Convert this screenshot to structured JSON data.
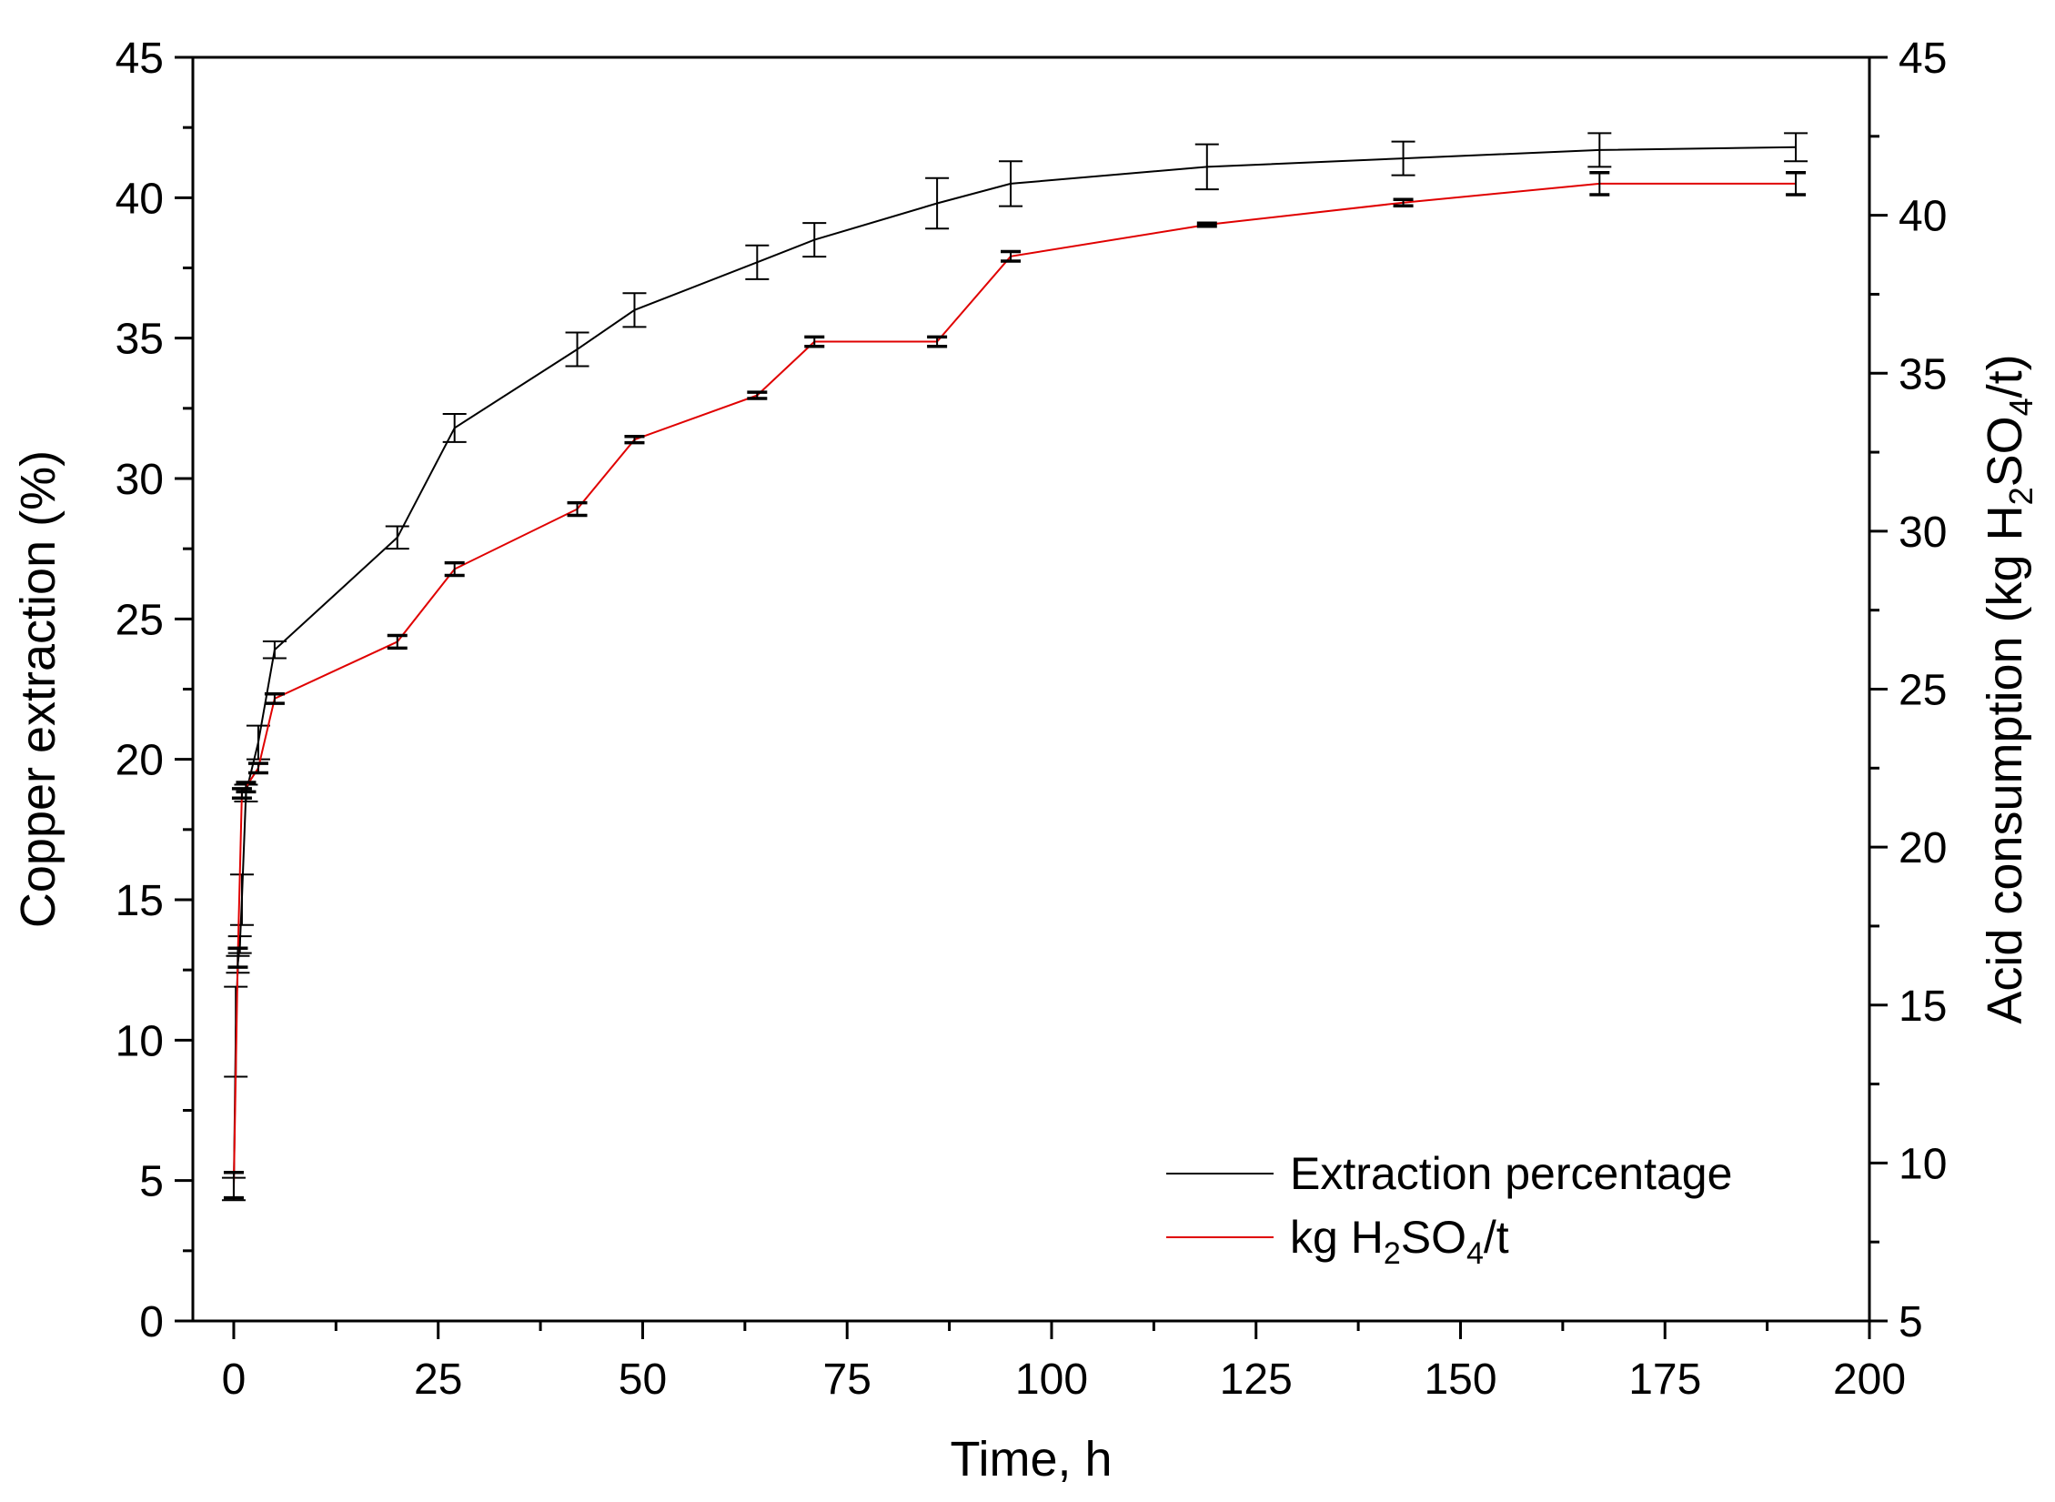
{
  "chart_data": {
    "type": "line",
    "title": "",
    "xlabel": "Time, h",
    "ylabel_left": "Copper extraction (%)",
    "ylabel_right": {
      "prefix": "Acid consumption (kg H",
      "sub1": "2",
      "mid": "SO",
      "sub2": "4",
      "suffix": "/t)"
    },
    "xlim": [
      -5,
      200
    ],
    "ylim_left": [
      0,
      45
    ],
    "ylim_right": [
      5,
      45
    ],
    "x_ticks": [
      "0",
      "25",
      "50",
      "75",
      "100",
      "125",
      "150",
      "175",
      "200"
    ],
    "y_left_ticks": [
      "0",
      "5",
      "10",
      "15",
      "20",
      "25",
      "30",
      "35",
      "40",
      "45"
    ],
    "y_right_ticks": [
      "5",
      "10",
      "15",
      "20",
      "25",
      "30",
      "35",
      "40",
      "45"
    ],
    "grid": false,
    "legend_position": "bottom-right",
    "series": [
      {
        "name": "Extraction percentage",
        "axis": "left",
        "color": "#000000",
        "x": [
          0,
          0.25,
          0.5,
          0.75,
          1,
          1.5,
          3,
          5,
          20,
          27,
          42,
          49,
          64,
          71,
          86,
          95,
          119,
          143,
          167,
          191
        ],
        "values": [
          4.7,
          10.3,
          12.7,
          13.4,
          15,
          18.8,
          20.6,
          23.9,
          27.9,
          31.8,
          34.6,
          36.0,
          37.7,
          38.5,
          39.8,
          40.5,
          41.1,
          41.4,
          41.7,
          41.8
        ],
        "errors": [
          0.4,
          1.6,
          0.3,
          0.3,
          0.9,
          0.3,
          0.6,
          0.3,
          0.4,
          0.5,
          0.6,
          0.6,
          0.6,
          0.6,
          0.9,
          0.8,
          0.8,
          0.6,
          0.6,
          0.5
        ]
      },
      {
        "name_parts": {
          "prefix": "kg H",
          "sub1": "2",
          "mid": "SO",
          "sub2": "4",
          "suffix": "/t"
        },
        "axis": "right",
        "color": "#e00000",
        "x": [
          0,
          0.5,
          1,
          1.5,
          3,
          5,
          20,
          27,
          42,
          49,
          64,
          71,
          86,
          95,
          119,
          143,
          167,
          191
        ],
        "values": [
          9.3,
          16.5,
          21.7,
          21.9,
          22.5,
          24.7,
          26.5,
          28.8,
          30.7,
          32.9,
          34.3,
          36.0,
          36.0,
          38.7,
          39.7,
          40.4,
          41.0,
          41.0
        ],
        "errors": [
          0.4,
          0.3,
          0.15,
          0.15,
          0.15,
          0.15,
          0.2,
          0.2,
          0.2,
          0.1,
          0.1,
          0.15,
          0.15,
          0.15,
          0.05,
          0.1,
          0.35,
          0.35
        ]
      }
    ]
  }
}
